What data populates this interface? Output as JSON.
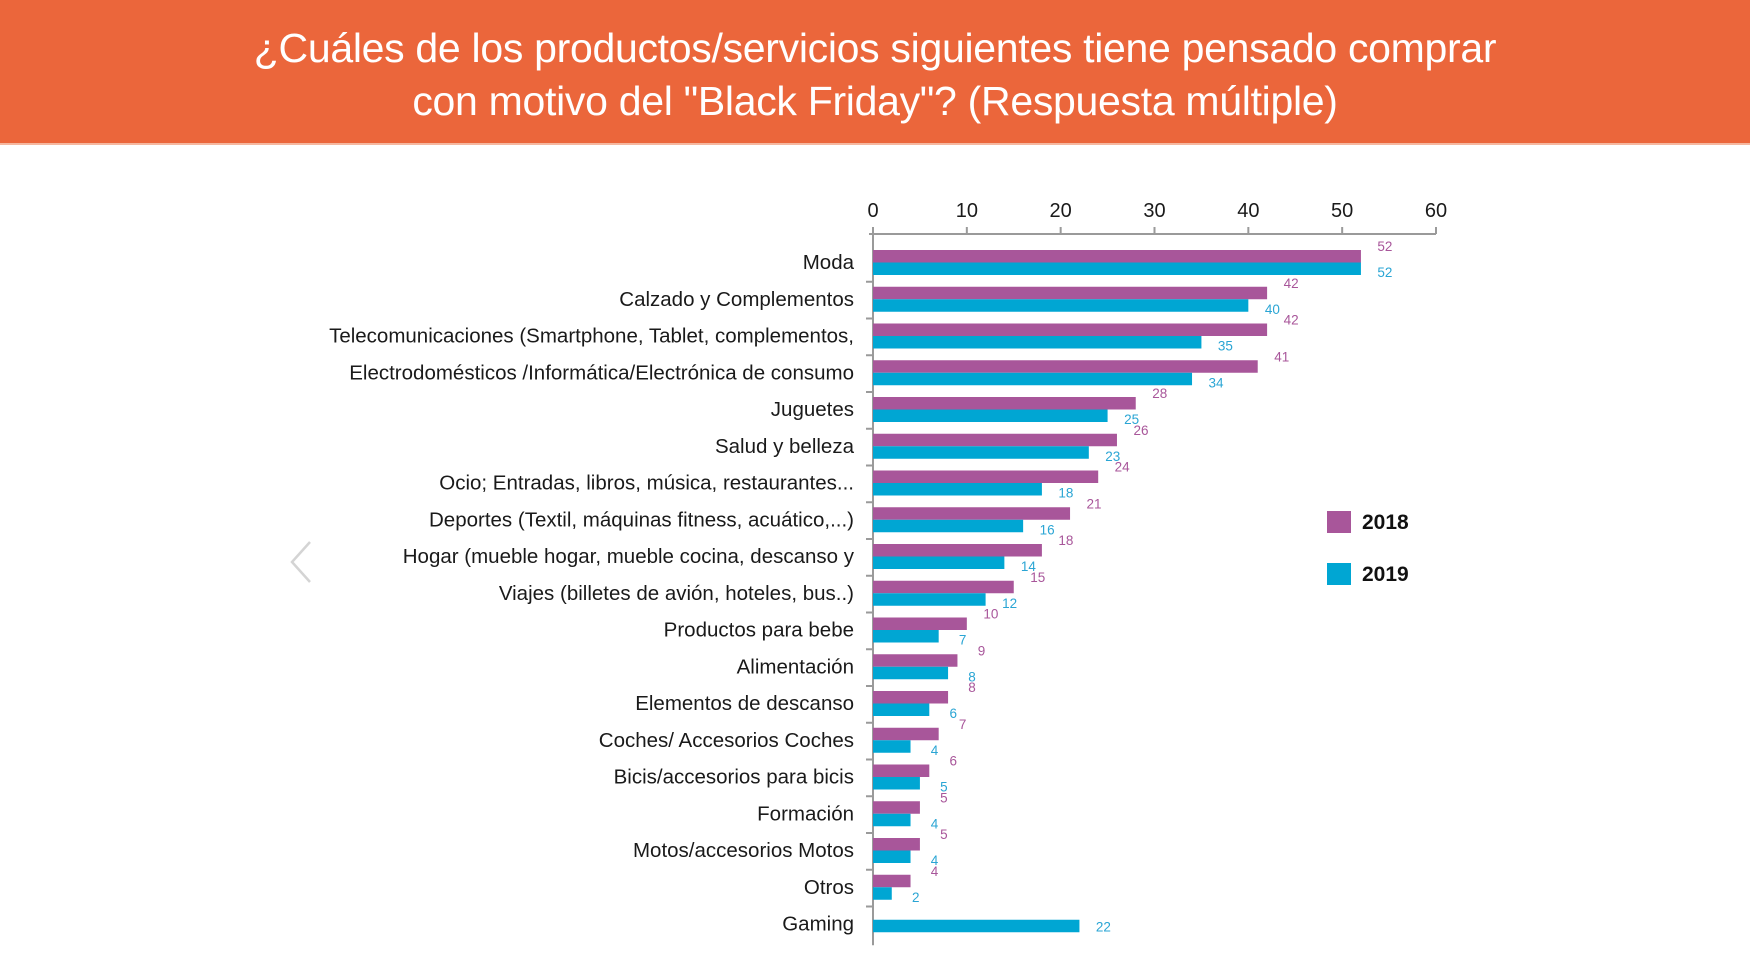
{
  "header": {
    "title_line1": "¿Cuáles de los productos/servicios siguientes tiene pensado comprar",
    "title_line2": "con motivo del \"Black Friday\"? (Respuesta múltiple)",
    "background_color": "#EB663B"
  },
  "navigation": {
    "prev_icon": "chevron-left-icon"
  },
  "chart_data": {
    "type": "bar",
    "orientation": "horizontal",
    "title": "¿Cuáles de los productos/servicios siguientes tiene pensado comprar con motivo del \"Black Friday\"? (Respuesta múltiple)",
    "xlabel": "",
    "ylabel": "",
    "xlim": [
      0,
      60
    ],
    "x_ticks": [
      0,
      10,
      20,
      30,
      40,
      50,
      60
    ],
    "axis_position": "top",
    "grid": false,
    "legend_position": "right",
    "categories": [
      "Moda",
      "Calzado y Complementos",
      "Telecomunicaciones (Smartphone, Tablet, complementos,",
      "Electrodomésticos /Informática/Electrónica de consumo",
      "Juguetes",
      "Salud y belleza",
      "Ocio; Entradas, libros, música, restaurantes...",
      "Deportes (Textil, máquinas fitness, acuático,...)",
      "Hogar (mueble hogar, mueble cocina, descanso y",
      "Viajes (billetes de avión, hoteles, bus..)",
      "Productos para bebe",
      "Alimentación",
      "Elementos de descanso",
      "Coches/ Accesorios Coches",
      "Bicis/accesorios para bicis",
      "Formación",
      "Motos/accesorios Motos",
      "Otros",
      "Gaming"
    ],
    "series": [
      {
        "name": "2018",
        "color": "#A8569A",
        "values": [
          52,
          42,
          42,
          41,
          28,
          26,
          24,
          21,
          18,
          15,
          10,
          9,
          8,
          7,
          6,
          5,
          5,
          4,
          null
        ]
      },
      {
        "name": "2019",
        "color": "#00A6D3",
        "values": [
          52,
          40,
          35,
          34,
          25,
          23,
          18,
          16,
          14,
          12,
          7,
          8,
          6,
          4,
          5,
          4,
          4,
          2,
          22
        ]
      }
    ],
    "data_labels": true
  }
}
